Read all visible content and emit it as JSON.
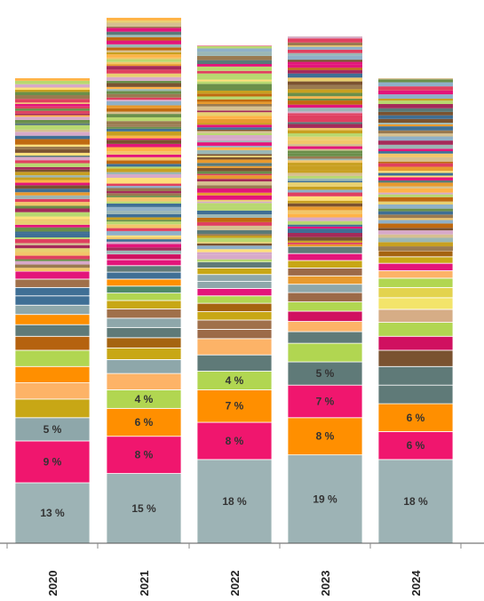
{
  "chart_data": {
    "type": "bar",
    "stacked": true,
    "orientation": "vertical",
    "categories": [
      "2020",
      "2021",
      "2022",
      "2023",
      "2024"
    ],
    "totals": [
      100,
      113,
      107,
      109,
      100
    ],
    "grid": false,
    "legend": "none",
    "tail_palette": [
      "#c8a020",
      "#e89a2e",
      "#9bb7b5",
      "#e8d070",
      "#a52a5a",
      "#7a5230",
      "#f2c66a",
      "#3f6f95",
      "#e3157a",
      "#b8d870",
      "#ffe07a",
      "#5a7a78",
      "#c06a10",
      "#d7a9c9",
      "#8fb0c8",
      "#d6c090",
      "#e04060",
      "#6a8f4a",
      "#ffb347",
      "#9a7a50"
    ],
    "segments": [
      {
        "year": "2020",
        "parts": [
          {
            "value": 13,
            "label": "13 %",
            "color": "#9db3b5"
          },
          {
            "value": 9,
            "label": "9 %",
            "color": "#f0166e"
          },
          {
            "value": 5,
            "label": "5 %",
            "color": "#8ea7aa"
          },
          {
            "value": 4,
            "label": "",
            "color": "#c8a715"
          },
          {
            "value": 3.5,
            "label": "",
            "color": "#fdb367"
          },
          {
            "value": 3.5,
            "label": "",
            "color": "#ff8f00"
          },
          {
            "value": 3.5,
            "label": "",
            "color": "#b1d651"
          },
          {
            "value": 3,
            "label": "",
            "color": "#b5620f"
          },
          {
            "value": 2.5,
            "label": "",
            "color": "#5f7a78"
          },
          {
            "value": 2.2,
            "label": "",
            "color": "#ff8f00"
          },
          {
            "value": 2,
            "label": "",
            "color": "#8ea7aa"
          },
          {
            "value": 2,
            "label": "",
            "color": "#3f6f95"
          },
          {
            "value": 1.8,
            "label": "",
            "color": "#3f6f95"
          },
          {
            "value": 1.8,
            "label": "",
            "color": "#a0704a"
          },
          {
            "value": 1.7,
            "label": "",
            "color": "#e3157a"
          }
        ]
      },
      {
        "year": "2021",
        "parts": [
          {
            "value": 15,
            "label": "15 %",
            "color": "#9db3b5"
          },
          {
            "value": 8,
            "label": "8 %",
            "color": "#f0166e"
          },
          {
            "value": 6,
            "label": "6 %",
            "color": "#ff8f00"
          },
          {
            "value": 4,
            "label": "4 %",
            "color": "#b1d651"
          },
          {
            "value": 3.5,
            "label": "",
            "color": "#fdb367"
          },
          {
            "value": 3,
            "label": "",
            "color": "#8ea7aa"
          },
          {
            "value": 2.5,
            "label": "",
            "color": "#c8a715"
          },
          {
            "value": 2.2,
            "label": "",
            "color": "#a56410"
          },
          {
            "value": 2.2,
            "label": "",
            "color": "#5f7a78"
          },
          {
            "value": 2,
            "label": "",
            "color": "#8ea7aa"
          },
          {
            "value": 2,
            "label": "",
            "color": "#a0704a"
          },
          {
            "value": 1.8,
            "label": "",
            "color": "#c8a715"
          },
          {
            "value": 1.6,
            "label": "",
            "color": "#b1d651"
          },
          {
            "value": 1.5,
            "label": "",
            "color": "#4f8a6a"
          },
          {
            "value": 1.5,
            "label": "",
            "color": "#ff8f00"
          },
          {
            "value": 1.5,
            "label": "",
            "color": "#3f6f95"
          },
          {
            "value": 1.4,
            "label": "",
            "color": "#5f7a78"
          },
          {
            "value": 1.3,
            "label": "",
            "color": "#e3157a"
          },
          {
            "value": 1.2,
            "label": "",
            "color": "#d01060"
          }
        ]
      },
      {
        "year": "2022",
        "parts": [
          {
            "value": 18,
            "label": "18 %",
            "color": "#9db3b5"
          },
          {
            "value": 8,
            "label": "8 %",
            "color": "#f0166e"
          },
          {
            "value": 7,
            "label": "7 %",
            "color": "#ff8f00"
          },
          {
            "value": 4,
            "label": "4 %",
            "color": "#b1d651"
          },
          {
            "value": 3.5,
            "label": "",
            "color": "#5f7a78"
          },
          {
            "value": 3.5,
            "label": "",
            "color": "#fdb367"
          },
          {
            "value": 2,
            "label": "",
            "color": "#9c6a48"
          },
          {
            "value": 2,
            "label": "",
            "color": "#a0704a"
          },
          {
            "value": 1.8,
            "label": "",
            "color": "#c8a715"
          },
          {
            "value": 1.8,
            "label": "",
            "color": "#a56410"
          },
          {
            "value": 1.6,
            "label": "",
            "color": "#b1d651"
          },
          {
            "value": 1.6,
            "label": "",
            "color": "#e3157a"
          },
          {
            "value": 1.5,
            "label": "",
            "color": "#8ea7aa"
          },
          {
            "value": 1.5,
            "label": "",
            "color": "#8ea7aa"
          },
          {
            "value": 1.4,
            "label": "",
            "color": "#c8a715"
          },
          {
            "value": 1.3,
            "label": "",
            "color": "#5f7a78"
          }
        ]
      },
      {
        "year": "2023",
        "parts": [
          {
            "value": 19,
            "label": "19 %",
            "color": "#9db3b5"
          },
          {
            "value": 8,
            "label": "8 %",
            "color": "#ff8f00"
          },
          {
            "value": 7,
            "label": "7 %",
            "color": "#f0166e"
          },
          {
            "value": 5,
            "label": "5 %",
            "color": "#5f7a78"
          },
          {
            "value": 4,
            "label": "",
            "color": "#b1d651"
          },
          {
            "value": 2.5,
            "label": "",
            "color": "#5f7a78"
          },
          {
            "value": 2.2,
            "label": "",
            "color": "#fdb367"
          },
          {
            "value": 2.2,
            "label": "",
            "color": "#d01060"
          },
          {
            "value": 2,
            "label": "",
            "color": "#b1d651"
          },
          {
            "value": 2,
            "label": "",
            "color": "#9c6a48"
          },
          {
            "value": 1.8,
            "label": "",
            "color": "#8ea7aa"
          },
          {
            "value": 1.8,
            "label": "",
            "color": "#e89a2e"
          },
          {
            "value": 1.7,
            "label": "",
            "color": "#9c6a48"
          },
          {
            "value": 1.6,
            "label": "",
            "color": "#c8a715"
          },
          {
            "value": 1.5,
            "label": "",
            "color": "#e3157a"
          },
          {
            "value": 1.5,
            "label": "",
            "color": "#5f7a78"
          }
        ]
      },
      {
        "year": "2024",
        "parts": [
          {
            "value": 18,
            "label": "18 %",
            "color": "#9db3b5"
          },
          {
            "value": 6,
            "label": "6 %",
            "color": "#f0166e"
          },
          {
            "value": 6,
            "label": "6 %",
            "color": "#ff8f00"
          },
          {
            "value": 4,
            "label": "",
            "color": "#5f7a78"
          },
          {
            "value": 4,
            "label": "",
            "color": "#5f7a78"
          },
          {
            "value": 3.5,
            "label": "",
            "color": "#7a5230"
          },
          {
            "value": 3,
            "label": "",
            "color": "#d01060"
          },
          {
            "value": 3,
            "label": "",
            "color": "#b1d651"
          },
          {
            "value": 2.8,
            "label": "",
            "color": "#d6ad86"
          },
          {
            "value": 2.5,
            "label": "",
            "color": "#f3e46a"
          },
          {
            "value": 2.2,
            "label": "",
            "color": "#e3d34e"
          },
          {
            "value": 2,
            "label": "",
            "color": "#b1d651"
          },
          {
            "value": 1.6,
            "label": "",
            "color": "#fdb367"
          },
          {
            "value": 1.6,
            "label": "",
            "color": "#e3157a"
          },
          {
            "value": 1.4,
            "label": "",
            "color": "#c8a715"
          },
          {
            "value": 1.3,
            "label": "",
            "color": "#a56410"
          }
        ]
      }
    ]
  }
}
